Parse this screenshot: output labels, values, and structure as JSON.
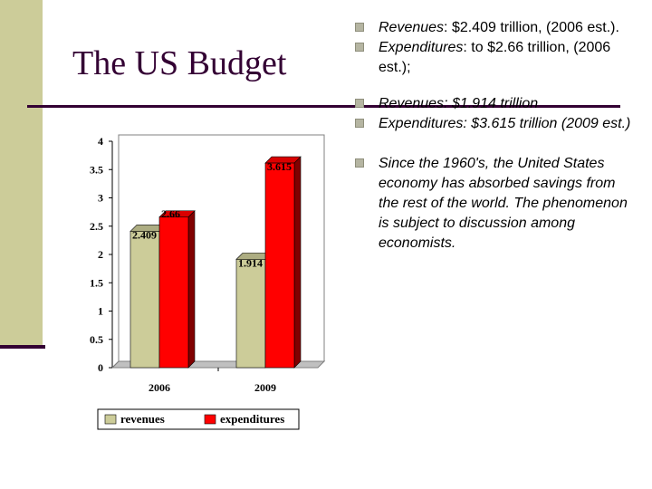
{
  "title": "The US Budget",
  "bullets": [
    {
      "label": "Revenues",
      "rest": ": $2.409 trillion, (2006 est.).",
      "italic_all": false
    },
    {
      "label": "Expenditures",
      "rest": ": to $2.66 trillion, (2006 est.);",
      "italic_all": false
    },
    {
      "label": "Revenues: $1.914 trillion",
      "rest": "",
      "italic_all": true
    },
    {
      "label": "Expenditures: $3.615 trillion (2009 est.)",
      "rest": "",
      "italic_all": true
    },
    {
      "label": "Since the 1960's, the United States economy has absorbed savings from the rest of the world. The phenomenon is subject to discussion among economists.",
      "rest": "",
      "italic_all": true
    }
  ],
  "colors": {
    "sidebar": "#cccc99",
    "title": "#330033",
    "revenues": "#cccc99",
    "expenditures": "#ff0000"
  },
  "chart_data": {
    "type": "bar",
    "categories": [
      "2006",
      "2009"
    ],
    "series": [
      {
        "name": "revenues",
        "values": [
          2.409,
          1.914
        ],
        "labels": [
          "2.409",
          "1.914"
        ]
      },
      {
        "name": "expenditures",
        "values": [
          2.66,
          3.615
        ],
        "labels": [
          "2.66",
          "3.615"
        ]
      }
    ],
    "yticks": [
      "0",
      "0.5",
      "1",
      "1.5",
      "2",
      "2.5",
      "3",
      "3.5",
      "4"
    ],
    "ylim": [
      0,
      4
    ],
    "legend_position": "bottom",
    "title": "",
    "xlabel": "",
    "ylabel": ""
  }
}
